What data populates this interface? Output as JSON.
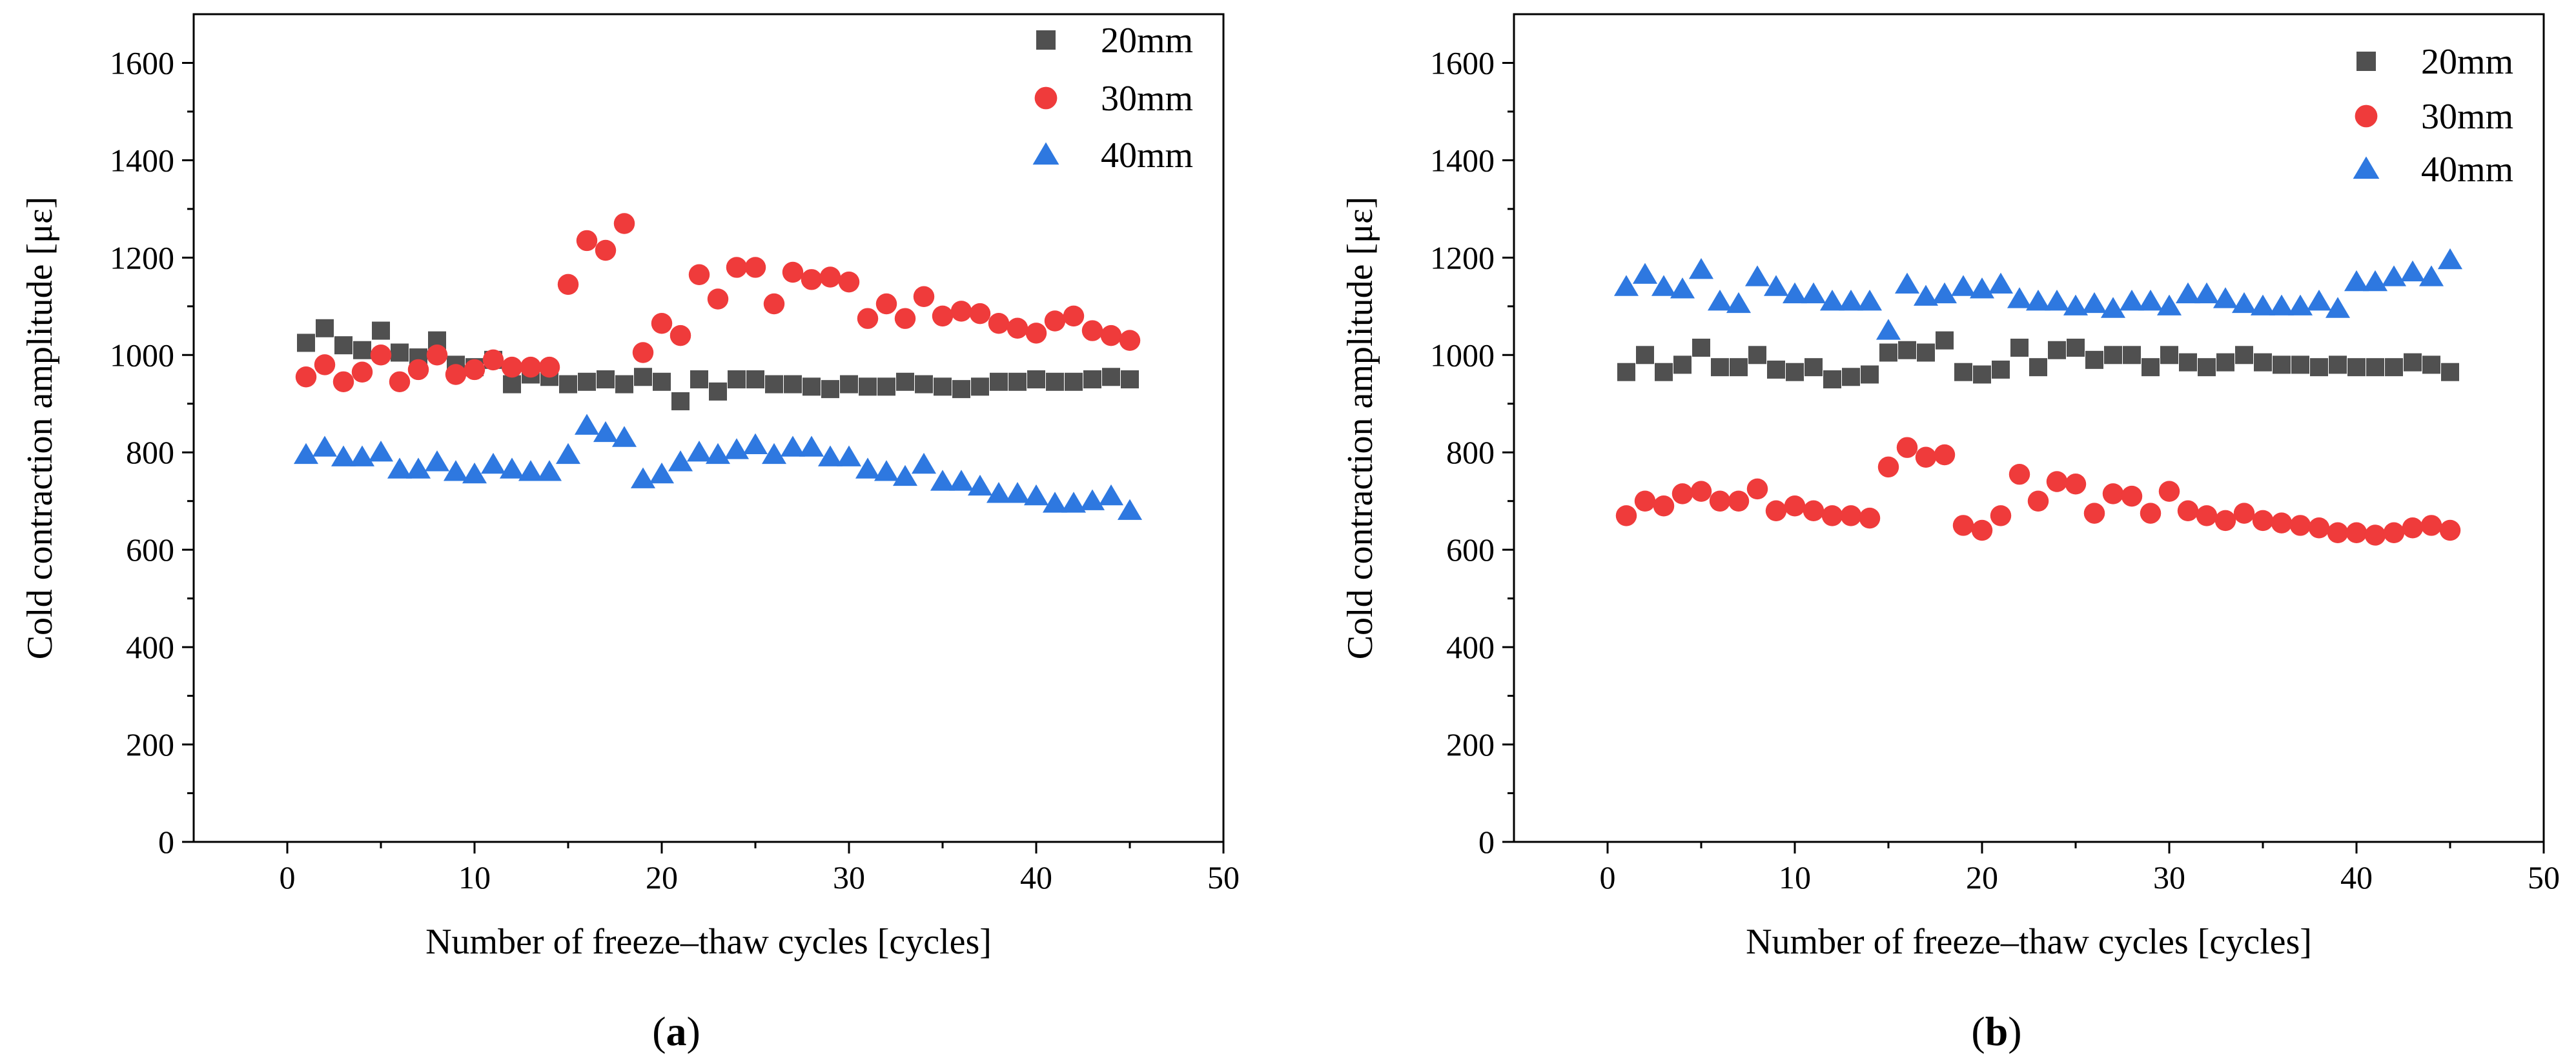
{
  "colors": {
    "20mm": "#505050",
    "30mm": "#ef3b3b",
    "40mm": "#2e78e0"
  },
  "chart_data": [
    {
      "type": "scatter",
      "panel": "a",
      "panel_label": "(a)",
      "panel_letter": "a",
      "xlabel": "Number of freeze–thaw cycles [cycles]",
      "ylabel": "Cold contraction amplitude [με]",
      "xlim": [
        -5,
        50
      ],
      "ylim": [
        0,
        1700
      ],
      "xticks": [
        0,
        10,
        20,
        30,
        40,
        50
      ],
      "yticks": [
        0,
        200,
        400,
        600,
        800,
        1000,
        1200,
        1400,
        1600
      ],
      "legend_position": "top-right",
      "x": [
        1,
        2,
        3,
        4,
        5,
        6,
        7,
        8,
        9,
        10,
        11,
        12,
        13,
        14,
        15,
        16,
        17,
        18,
        19,
        20,
        21,
        22,
        23,
        24,
        25,
        26,
        27,
        28,
        29,
        30,
        31,
        32,
        33,
        34,
        35,
        36,
        37,
        38,
        39,
        40,
        41,
        42,
        43,
        44,
        45
      ],
      "series": [
        {
          "name": "20mm",
          "marker": "square",
          "values": [
            1025,
            1055,
            1020,
            1010,
            1050,
            1005,
            995,
            1030,
            980,
            975,
            990,
            940,
            960,
            955,
            940,
            945,
            950,
            940,
            955,
            945,
            905,
            950,
            925,
            950,
            950,
            940,
            940,
            935,
            930,
            940,
            935,
            935,
            945,
            940,
            935,
            930,
            935,
            945,
            945,
            950,
            945,
            945,
            950,
            955,
            950
          ]
        },
        {
          "name": "30mm",
          "marker": "circle",
          "values": [
            955,
            980,
            945,
            965,
            1000,
            945,
            970,
            1000,
            960,
            970,
            990,
            975,
            975,
            975,
            1145,
            1235,
            1215,
            1270,
            1005,
            1065,
            1040,
            1165,
            1115,
            1180,
            1180,
            1105,
            1170,
            1155,
            1160,
            1150,
            1075,
            1105,
            1075,
            1120,
            1080,
            1090,
            1085,
            1065,
            1055,
            1045,
            1070,
            1080,
            1050,
            1040,
            1030
          ]
        },
        {
          "name": "40mm",
          "marker": "triangle",
          "values": [
            795,
            810,
            790,
            790,
            800,
            765,
            765,
            780,
            760,
            755,
            775,
            765,
            760,
            760,
            795,
            855,
            840,
            830,
            745,
            755,
            780,
            800,
            795,
            805,
            815,
            795,
            810,
            810,
            790,
            790,
            765,
            760,
            750,
            775,
            740,
            740,
            730,
            715,
            715,
            710,
            695,
            695,
            700,
            710,
            680
          ]
        }
      ]
    },
    {
      "type": "scatter",
      "panel": "b",
      "panel_label": "(b)",
      "panel_letter": "b",
      "xlabel": "Number of freeze–thaw cycles [cycles]",
      "ylabel": "Cold contraction amplitude [με]",
      "xlim": [
        -5,
        50
      ],
      "ylim": [
        0,
        1700
      ],
      "xticks": [
        0,
        10,
        20,
        30,
        40,
        50
      ],
      "yticks": [
        0,
        200,
        400,
        600,
        800,
        1000,
        1200,
        1400,
        1600
      ],
      "legend_position": "top-right",
      "x": [
        1,
        2,
        3,
        4,
        5,
        6,
        7,
        8,
        9,
        10,
        11,
        12,
        13,
        14,
        15,
        16,
        17,
        18,
        19,
        20,
        21,
        22,
        23,
        24,
        25,
        26,
        27,
        28,
        29,
        30,
        31,
        32,
        33,
        34,
        35,
        36,
        37,
        38,
        39,
        40,
        41,
        42,
        43,
        44,
        45
      ],
      "series": [
        {
          "name": "20mm",
          "marker": "square",
          "values": [
            965,
            1000,
            965,
            980,
            1015,
            975,
            975,
            1000,
            970,
            965,
            975,
            950,
            955,
            960,
            1005,
            1010,
            1005,
            1030,
            965,
            960,
            970,
            1015,
            975,
            1010,
            1015,
            990,
            1000,
            1000,
            975,
            1000,
            985,
            975,
            985,
            1000,
            985,
            980,
            980,
            975,
            980,
            975,
            975,
            975,
            985,
            980,
            965
          ]
        },
        {
          "name": "30mm",
          "marker": "circle",
          "values": [
            670,
            700,
            690,
            715,
            720,
            700,
            700,
            725,
            680,
            690,
            680,
            670,
            670,
            665,
            770,
            810,
            790,
            795,
            650,
            640,
            670,
            755,
            700,
            740,
            735,
            675,
            715,
            710,
            675,
            720,
            680,
            670,
            660,
            675,
            660,
            655,
            650,
            645,
            635,
            635,
            630,
            635,
            645,
            650,
            640
          ]
        },
        {
          "name": "40mm",
          "marker": "triangle",
          "values": [
            1140,
            1165,
            1140,
            1135,
            1175,
            1110,
            1105,
            1160,
            1140,
            1125,
            1125,
            1110,
            1110,
            1110,
            1050,
            1145,
            1120,
            1125,
            1140,
            1135,
            1145,
            1115,
            1110,
            1110,
            1100,
            1105,
            1095,
            1110,
            1110,
            1100,
            1125,
            1125,
            1115,
            1105,
            1100,
            1100,
            1100,
            1110,
            1095,
            1150,
            1150,
            1160,
            1170,
            1160,
            1195
          ]
        }
      ]
    }
  ]
}
